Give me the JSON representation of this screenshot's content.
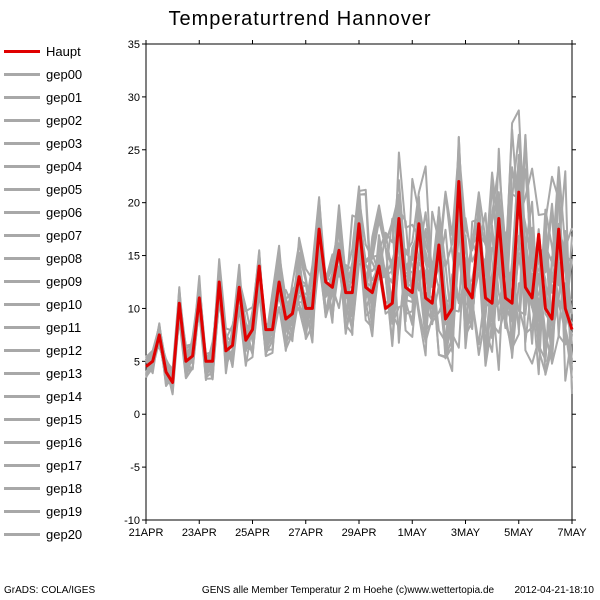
{
  "chart": {
    "type": "line",
    "title": "Temperaturtrend Hannover",
    "caption": "GENS alle Member Temperatur 2 m Hoehe (c)www.wettertopia.de",
    "grads_credit": "GrADS: COLA/IGES",
    "timestamp": "2012-04-21-18:10",
    "background_color": "#ffffff",
    "axis_color": "#000000",
    "member_color": "#a8a8a8",
    "haupt_color": "#e00000",
    "member_line_width": 2,
    "haupt_line_width": 3,
    "title_fontsize": 20,
    "axis_fontsize": 11,
    "legend_fontsize": 13,
    "caption_fontsize": 10,
    "x": {
      "min": 0,
      "max": 64,
      "ticks": [
        0,
        8,
        16,
        24,
        32,
        40,
        48,
        56,
        64
      ],
      "tick_labels": [
        "21APR",
        "23APR",
        "25APR",
        "27APR",
        "29APR",
        "1MAY",
        "3MAY",
        "5MAY",
        "7MAY"
      ]
    },
    "y": {
      "min": -10,
      "max": 35,
      "ticks": [
        -10,
        -5,
        0,
        5,
        10,
        15,
        20,
        25,
        30,
        35
      ]
    },
    "haupt": [
      4.5,
      5,
      7.5,
      4,
      3,
      10.5,
      5,
      5.5,
      11,
      5,
      5,
      12.5,
      6,
      6.5,
      12,
      7,
      8,
      14,
      8,
      8,
      12.5,
      9,
      9.5,
      13,
      10,
      10,
      17.5,
      12.5,
      12,
      15.5,
      11.5,
      11.5,
      18,
      12,
      11.5,
      14,
      10,
      10.5,
      18.5,
      12,
      11.5,
      18,
      11,
      10.5,
      16,
      9,
      10,
      22,
      12,
      11,
      18,
      11,
      10.5,
      18.5,
      11,
      10.5,
      21,
      12,
      11,
      17,
      10,
      9,
      17.5,
      10,
      8
    ],
    "ensemble_baselines": [
      [
        4.0,
        4.5,
        7.0,
        3.5,
        2.5,
        10.0,
        4.5,
        5.0,
        10.5,
        4.5,
        4.5,
        12.0,
        5.5,
        6.0,
        11.5,
        6.5,
        7.5,
        13.5,
        7.5,
        7.5,
        12.0,
        8.5,
        9.0,
        12.5,
        9.5,
        9.5,
        17.0,
        12.0,
        11.5,
        15.0,
        11.0,
        11.0,
        17.5,
        11.5,
        11.0,
        13.5,
        9.5,
        10.0,
        18.0,
        11.5,
        11.0,
        17.5,
        10.5,
        10.0,
        15.5,
        8.5,
        9.5,
        21.5,
        11.5,
        10.5,
        17.5,
        10.5,
        10.0,
        18.0,
        10.5,
        10.0,
        20.5,
        11.5,
        10.5,
        16.5,
        9.5,
        8.5,
        17.0,
        9.5,
        7.5
      ],
      [
        5.0,
        5.5,
        8.0,
        4.5,
        3.5,
        11.0,
        5.5,
        6.0,
        11.5,
        5.5,
        5.5,
        13.0,
        6.5,
        7.0,
        12.5,
        7.5,
        8.5,
        14.5,
        8.5,
        8.5,
        13.0,
        9.5,
        10.0,
        13.5,
        10.5,
        10.5,
        18.0,
        13.0,
        12.5,
        16.0,
        12.0,
        12.0,
        18.5,
        12.5,
        12.0,
        14.5,
        10.5,
        11.0,
        19.0,
        12.5,
        12.0,
        18.5,
        11.5,
        11.0,
        16.5,
        9.5,
        10.5,
        22.5,
        12.5,
        11.5,
        18.5,
        11.5,
        11.0,
        19.0,
        11.5,
        11.0,
        21.5,
        12.5,
        11.5,
        17.5,
        10.5,
        9.5,
        18.0,
        10.5,
        8.5
      ]
    ],
    "spread_scale_start": 0.3,
    "spread_scale_end": 2.2,
    "legend": [
      {
        "label": "Haupt",
        "color": "#e00000"
      },
      {
        "label": "gep00",
        "color": "#a8a8a8"
      },
      {
        "label": "gep01",
        "color": "#a8a8a8"
      },
      {
        "label": "gep02",
        "color": "#a8a8a8"
      },
      {
        "label": "gep03",
        "color": "#a8a8a8"
      },
      {
        "label": "gep04",
        "color": "#a8a8a8"
      },
      {
        "label": "gep05",
        "color": "#a8a8a8"
      },
      {
        "label": "gep06",
        "color": "#a8a8a8"
      },
      {
        "label": "gep07",
        "color": "#a8a8a8"
      },
      {
        "label": "gep08",
        "color": "#a8a8a8"
      },
      {
        "label": "gep09",
        "color": "#a8a8a8"
      },
      {
        "label": "gep10",
        "color": "#a8a8a8"
      },
      {
        "label": "gep11",
        "color": "#a8a8a8"
      },
      {
        "label": "gep12",
        "color": "#a8a8a8"
      },
      {
        "label": "gep13",
        "color": "#a8a8a8"
      },
      {
        "label": "gep14",
        "color": "#a8a8a8"
      },
      {
        "label": "gep15",
        "color": "#a8a8a8"
      },
      {
        "label": "gep16",
        "color": "#a8a8a8"
      },
      {
        "label": "gep17",
        "color": "#a8a8a8"
      },
      {
        "label": "gep18",
        "color": "#a8a8a8"
      },
      {
        "label": "gep19",
        "color": "#a8a8a8"
      },
      {
        "label": "gep20",
        "color": "#a8a8a8"
      }
    ]
  }
}
